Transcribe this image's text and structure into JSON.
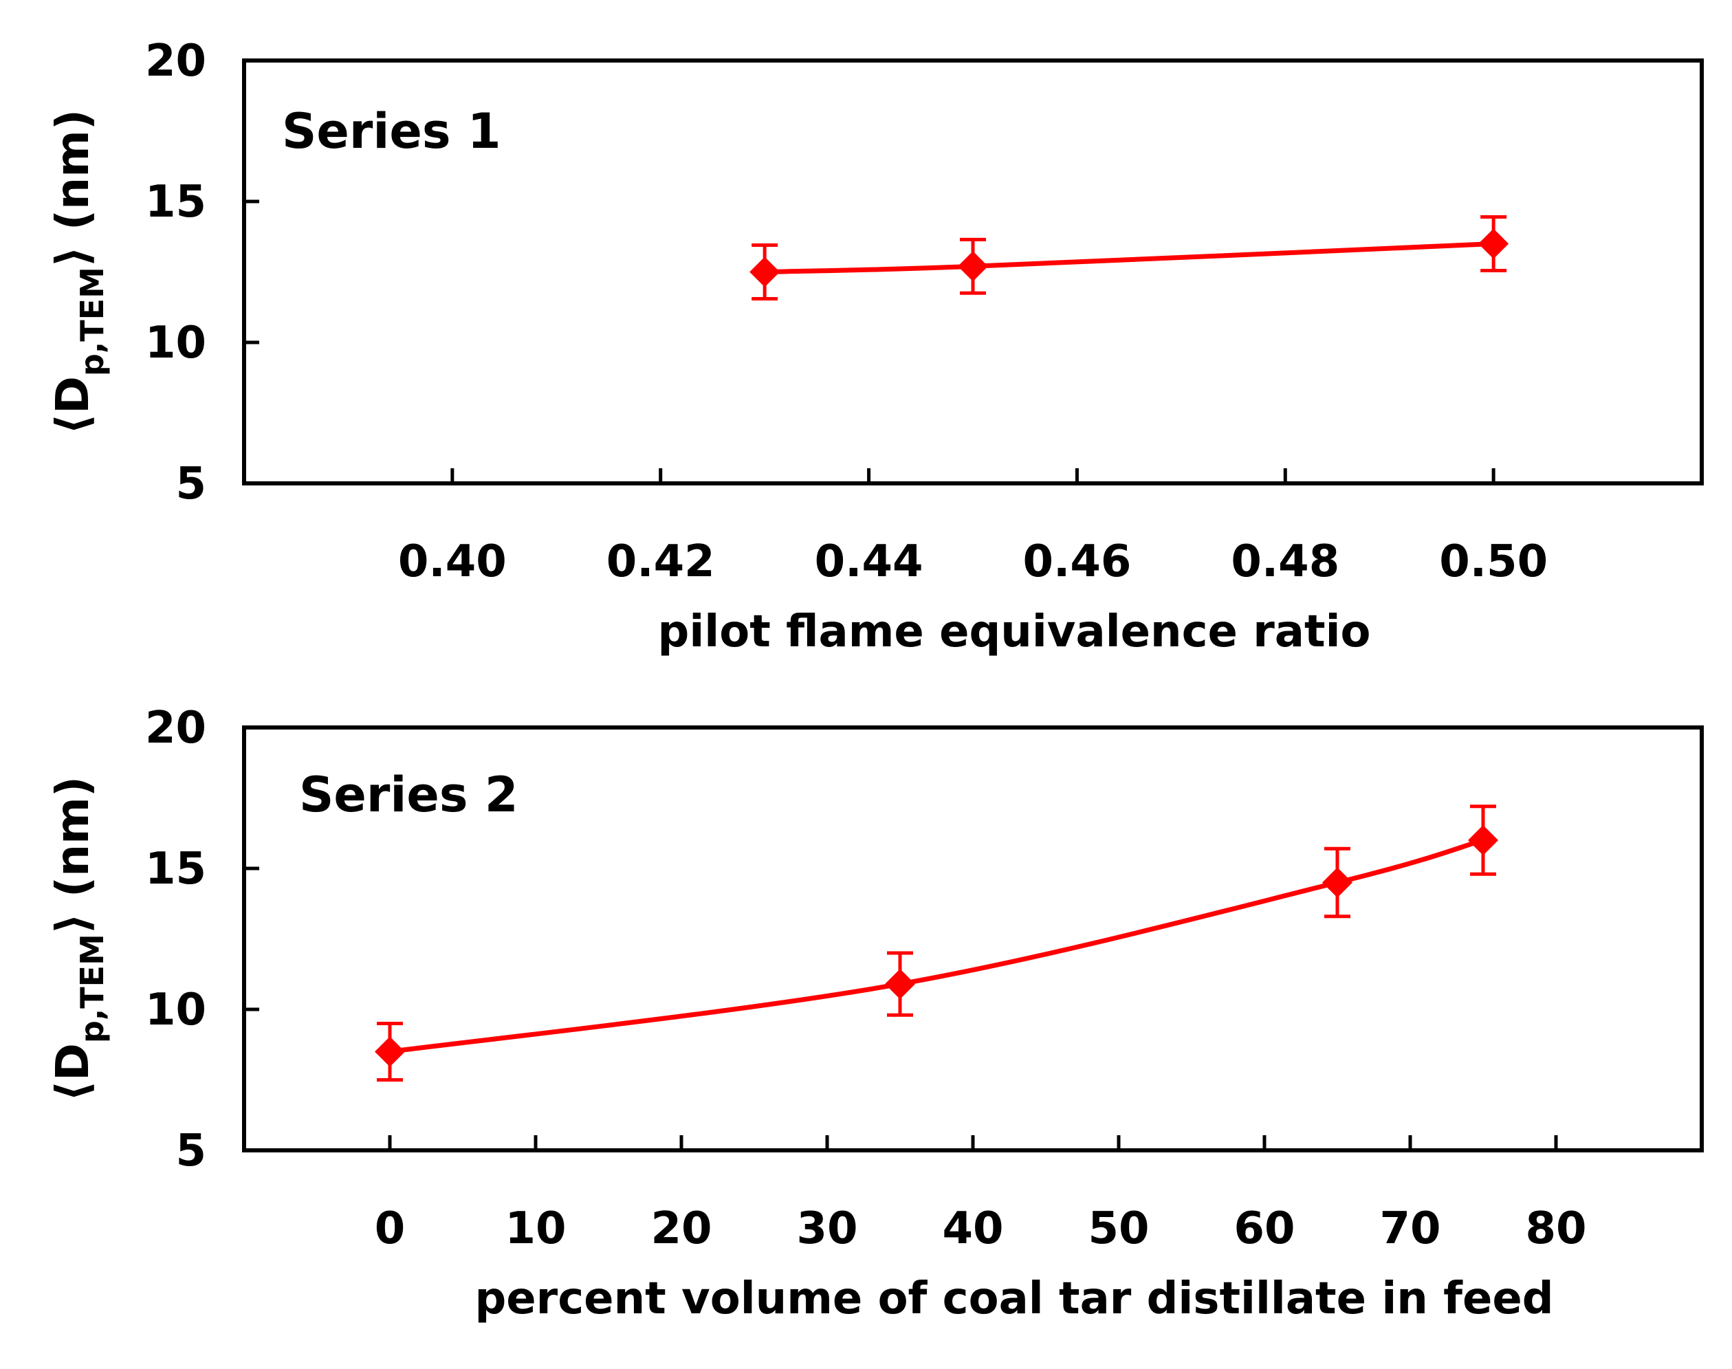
{
  "chart_data": [
    {
      "type": "line",
      "annotation": "Series 1",
      "xlabel": "pilot flame equivalence ratio",
      "ylabel_open": "⟨",
      "ylabel_main": "D",
      "ylabel_sub": "p,TEM",
      "ylabel_close": "⟩",
      "ylabel_unit": "(nm)",
      "xlim": [
        0.38,
        0.52
      ],
      "ylim": [
        5,
        20
      ],
      "xticks": [
        0.4,
        0.42,
        0.44,
        0.46,
        0.48,
        0.5
      ],
      "xtick_labels": [
        "0.40",
        "0.42",
        "0.44",
        "0.46",
        "0.48",
        "0.50"
      ],
      "yticks": [
        5,
        10,
        15,
        20
      ],
      "ytick_labels": [
        "5",
        "10",
        "15",
        "20"
      ],
      "series": [
        {
          "name": "Series 1",
          "color": "#ff0000",
          "x": [
            0.43,
            0.45,
            0.5
          ],
          "y": [
            12.5,
            12.7,
            13.5
          ],
          "err": [
            0.95,
            0.95,
            0.95
          ]
        }
      ]
    },
    {
      "type": "line",
      "annotation": "Series 2",
      "xlabel": "percent volume of coal tar distillate in feed",
      "ylabel_open": "⟨",
      "ylabel_main": "D",
      "ylabel_sub": "p,TEM",
      "ylabel_close": "⟩",
      "ylabel_unit": "(nm)",
      "xlim": [
        -10,
        90
      ],
      "ylim": [
        5,
        20
      ],
      "xticks": [
        0,
        10,
        20,
        30,
        40,
        50,
        60,
        70,
        80
      ],
      "xtick_labels": [
        "0",
        "10",
        "20",
        "30",
        "40",
        "50",
        "60",
        "70",
        "80"
      ],
      "yticks": [
        5,
        10,
        15,
        20
      ],
      "ytick_labels": [
        "5",
        "10",
        "15",
        "20"
      ],
      "series": [
        {
          "name": "Series 2",
          "color": "#ff0000",
          "x": [
            0,
            35,
            65,
            75
          ],
          "y": [
            8.5,
            10.9,
            14.5,
            16.0
          ],
          "err": [
            1.0,
            1.1,
            1.2,
            1.2
          ]
        }
      ]
    }
  ]
}
